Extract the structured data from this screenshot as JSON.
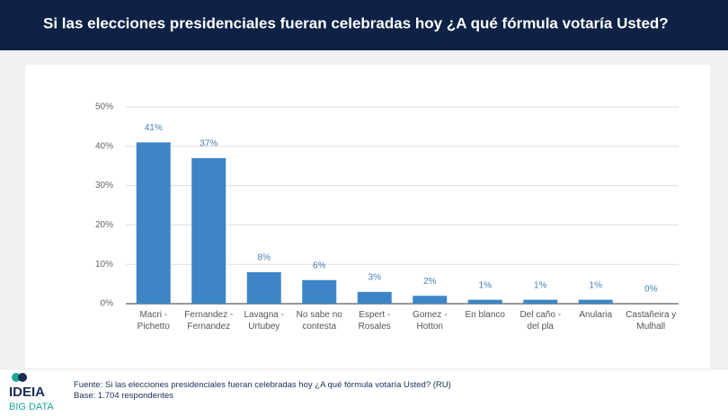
{
  "chart_data": {
    "type": "bar",
    "title": "Si las elecciones presidenciales fueran celebradas hoy ¿A qué fórmula votaría Usted?",
    "categories": [
      "Macri - Pichetto",
      "Fernandez - Fernandez",
      "Lavagna - Urtubey",
      "No sabe no contesta",
      "Espert - Rosales",
      "Gomez - Hotton",
      "En blanco",
      "Del caño - del pla",
      "Anularia",
      "Castañeira y Mulhall"
    ],
    "values": [
      41,
      37,
      8,
      6,
      3,
      2,
      1,
      1,
      1,
      0
    ],
    "value_labels": [
      "41%",
      "37%",
      "8%",
      "6%",
      "3%",
      "2%",
      "1%",
      "1%",
      "1%",
      "0%"
    ],
    "color": "#3d85c6",
    "ylim": [
      0,
      50
    ],
    "yticks": [
      {
        "value": 0,
        "label": "0%"
      },
      {
        "value": 10,
        "label": "10%"
      },
      {
        "value": 20,
        "label": "20%"
      },
      {
        "value": 30,
        "label": "30%"
      },
      {
        "value": 40,
        "label": "40%"
      },
      {
        "value": 50,
        "label": "50%"
      }
    ],
    "grid": true
  },
  "footer": {
    "source": "Fuente: Si las elecciones presidenciales fueran celebradas hoy ¿A qué fórmula votaría Usted? (RU)",
    "base": "Base: 1.704 respondentes"
  },
  "logo": {
    "name": "IDEIA",
    "sub": "BIG DATA"
  }
}
